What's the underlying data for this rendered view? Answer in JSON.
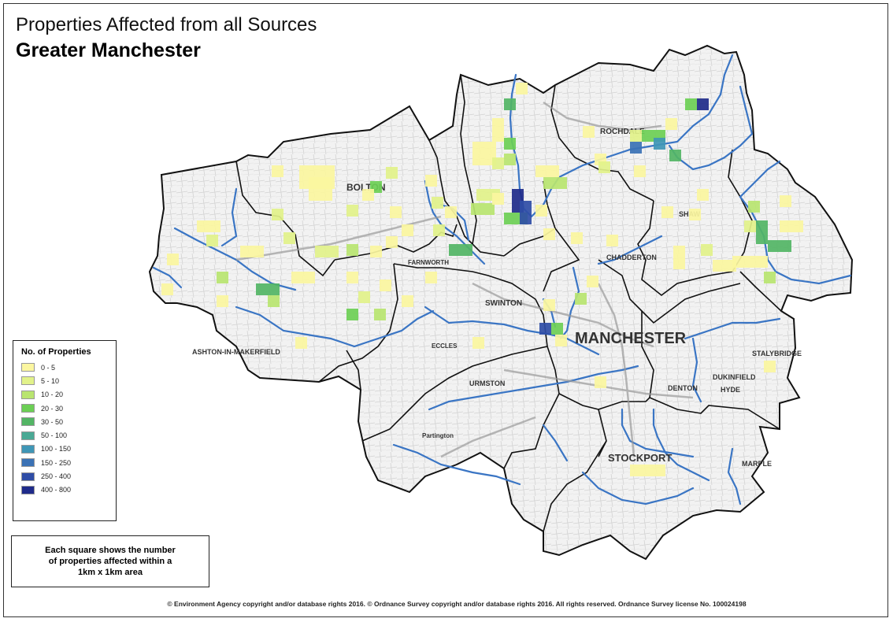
{
  "title": "Properties Affected from all Sources",
  "subtitle": "Greater Manchester",
  "legend": {
    "title": "No. of Properties",
    "items": [
      {
        "label": "0 - 5",
        "color": "#fbf6a0"
      },
      {
        "label": "5 - 10",
        "color": "#e2f28a"
      },
      {
        "label": "10 - 20",
        "color": "#b9e570"
      },
      {
        "label": "20 - 30",
        "color": "#6ccf55"
      },
      {
        "label": "30 - 50",
        "color": "#53b565"
      },
      {
        "label": "50 - 100",
        "color": "#4aa995"
      },
      {
        "label": "100 - 150",
        "color": "#3f96b6"
      },
      {
        "label": "150 - 250",
        "color": "#3b72b5"
      },
      {
        "label": "250 - 400",
        "color": "#2f4da6"
      },
      {
        "label": "400 - 800",
        "color": "#1f2b8a"
      }
    ]
  },
  "note": {
    "line1": "Each square shows the number",
    "line2": "of properties affected within a",
    "line3": "1km x 1km area"
  },
  "footer": "© Environment Agency copyright and/or database rights 2016. © Ordnance Survey copyright and/or database rights 2016. All rights reserved. Ordnance Survey license No. 100024198",
  "places": {
    "manchester": "MANCHESTER",
    "bolton": "BOLTON",
    "rochdale": "ROCHDALE",
    "stockport": "STOCKPORT",
    "swinton": "SWINTON",
    "urmston": "URMSTON",
    "ashton": "ASHTON-IN-MAKERFIELD",
    "farnworth": "FARNWORTH",
    "chadderton": "CHADDERTON",
    "dukinfield": "DUKINFIELD",
    "denton": "DENTON",
    "hyde": "HYDE",
    "stalybridge": "STALYBRIDGE",
    "marple": "MARPLE",
    "shaw": "SHAW",
    "partington": "Partington",
    "eccles": "ECCLES"
  }
}
